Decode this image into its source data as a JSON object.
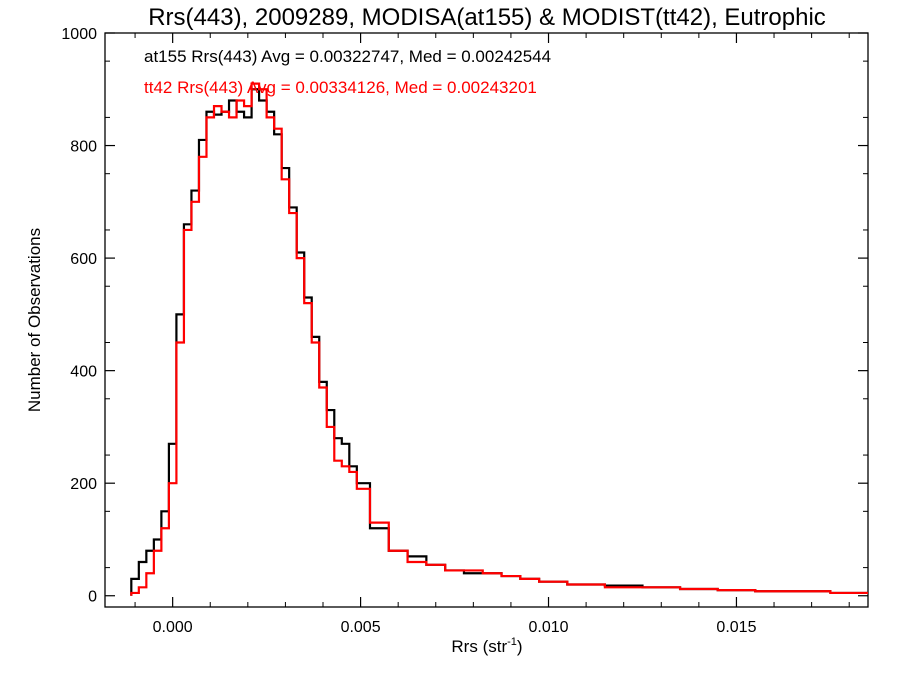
{
  "chart_data": {
    "type": "line",
    "title": "Rrs(443), 2009289, MODISA(at155) & MODIST(tt42), Eutrophic",
    "xlabel": "Rrs (str",
    "xlabel_sup": "-1",
    "xlabel_suffix": ")",
    "ylabel": "Number of Observations",
    "xlim": [
      -0.0018,
      0.0185
    ],
    "ylim": [
      -20,
      1000
    ],
    "x_ticks": [
      0.0,
      0.005,
      0.01,
      0.015
    ],
    "x_tick_labels": [
      "0.000",
      "0.005",
      "0.010",
      "0.015"
    ],
    "y_ticks": [
      0,
      200,
      400,
      600,
      800,
      1000
    ],
    "y_tick_labels": [
      "0",
      "200",
      "400",
      "600",
      "800",
      "1000"
    ],
    "grid": false,
    "legend_position": "top-left",
    "annotations": [
      {
        "text": "at155 Rrs(443) Avg = 0.00322747, Med = 0.00242544",
        "color": "#000000"
      },
      {
        "text": "tt42 Rrs(443) Avg = 0.00334126, Med = 0.00243201",
        "color": "#ff0000"
      }
    ],
    "series": [
      {
        "color": "#000000",
        "x": [
          -0.001,
          -0.0008,
          -0.0006,
          -0.0004,
          -0.0002,
          0.0,
          0.0002,
          0.0004,
          0.0006,
          0.0008,
          0.001,
          0.0012,
          0.0014,
          0.0016,
          0.0018,
          0.002,
          0.0022,
          0.0024,
          0.0026,
          0.0028,
          0.003,
          0.0032,
          0.0034,
          0.0036,
          0.0038,
          0.004,
          0.0042,
          0.0044,
          0.0046,
          0.0048,
          0.005,
          0.0055,
          0.006,
          0.0065,
          0.007,
          0.0075,
          0.008,
          0.0085,
          0.009,
          0.0095,
          0.01,
          0.011,
          0.012,
          0.013,
          0.014,
          0.015,
          0.016,
          0.017,
          0.018,
          0.0185
        ],
        "y": [
          30,
          60,
          80,
          100,
          150,
          270,
          500,
          660,
          720,
          810,
          860,
          855,
          860,
          880,
          860,
          850,
          900,
          880,
          860,
          820,
          760,
          690,
          610,
          530,
          460,
          380,
          330,
          280,
          270,
          230,
          200,
          120,
          80,
          70,
          55,
          45,
          40,
          40,
          35,
          30,
          25,
          20,
          18,
          15,
          12,
          10,
          8,
          8,
          5,
          5
        ]
      },
      {
        "color": "#ff0000",
        "x": [
          -0.001,
          -0.0008,
          -0.0006,
          -0.0004,
          -0.0002,
          0.0,
          0.0002,
          0.0004,
          0.0006,
          0.0008,
          0.001,
          0.0012,
          0.0014,
          0.0016,
          0.0018,
          0.002,
          0.0022,
          0.0024,
          0.0026,
          0.0028,
          0.003,
          0.0032,
          0.0034,
          0.0036,
          0.0038,
          0.004,
          0.0042,
          0.0044,
          0.0046,
          0.0048,
          0.005,
          0.0055,
          0.006,
          0.0065,
          0.007,
          0.0075,
          0.008,
          0.0085,
          0.009,
          0.0095,
          0.01,
          0.011,
          0.012,
          0.013,
          0.014,
          0.015,
          0.016,
          0.017,
          0.018,
          0.0185
        ],
        "y": [
          5,
          15,
          40,
          80,
          120,
          200,
          450,
          650,
          700,
          780,
          850,
          870,
          860,
          850,
          880,
          870,
          910,
          900,
          850,
          830,
          740,
          680,
          600,
          520,
          450,
          370,
          300,
          240,
          230,
          220,
          190,
          130,
          80,
          60,
          55,
          45,
          45,
          40,
          35,
          30,
          25,
          20,
          15,
          15,
          12,
          10,
          8,
          8,
          5,
          5
        ]
      }
    ]
  }
}
